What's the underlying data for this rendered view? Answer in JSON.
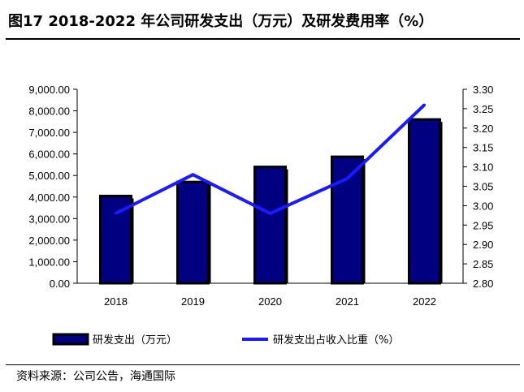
{
  "title": "图17 2018-2022 年公司研发支出（万元）及研发费用率（%）",
  "source": "资料来源：公司公告，海通国际",
  "colors": {
    "bar": "#000080",
    "bar_shadow": "#000000",
    "line": "#1a1aff"
  },
  "chart_data": {
    "type": "bar",
    "categories": [
      "2018",
      "2019",
      "2020",
      "2021",
      "2022"
    ],
    "series": [
      {
        "name": "研发支出（万元）",
        "type": "bar",
        "axis": "left",
        "values": [
          4050,
          4700,
          5400,
          5870,
          7600
        ]
      },
      {
        "name": "研发支出占收入比重（%）",
        "type": "line",
        "axis": "right",
        "values": [
          2.98,
          3.08,
          2.98,
          3.07,
          3.26
        ]
      }
    ],
    "y_left": {
      "min": 0,
      "max": 9000,
      "step": 1000,
      "tick_labels": [
        "0.00",
        "1,000.00",
        "2,000.00",
        "3,000.00",
        "4,000.00",
        "5,000.00",
        "6,000.00",
        "7,000.00",
        "8,000.00",
        "9,000.00"
      ]
    },
    "y_right": {
      "min": 2.8,
      "max": 3.3,
      "step": 0.05,
      "tick_labels": [
        "2.80",
        "2.85",
        "2.90",
        "2.95",
        "3.00",
        "3.05",
        "3.10",
        "3.15",
        "3.20",
        "3.25",
        "3.30"
      ]
    },
    "legend_position": "bottom",
    "grid": false
  }
}
